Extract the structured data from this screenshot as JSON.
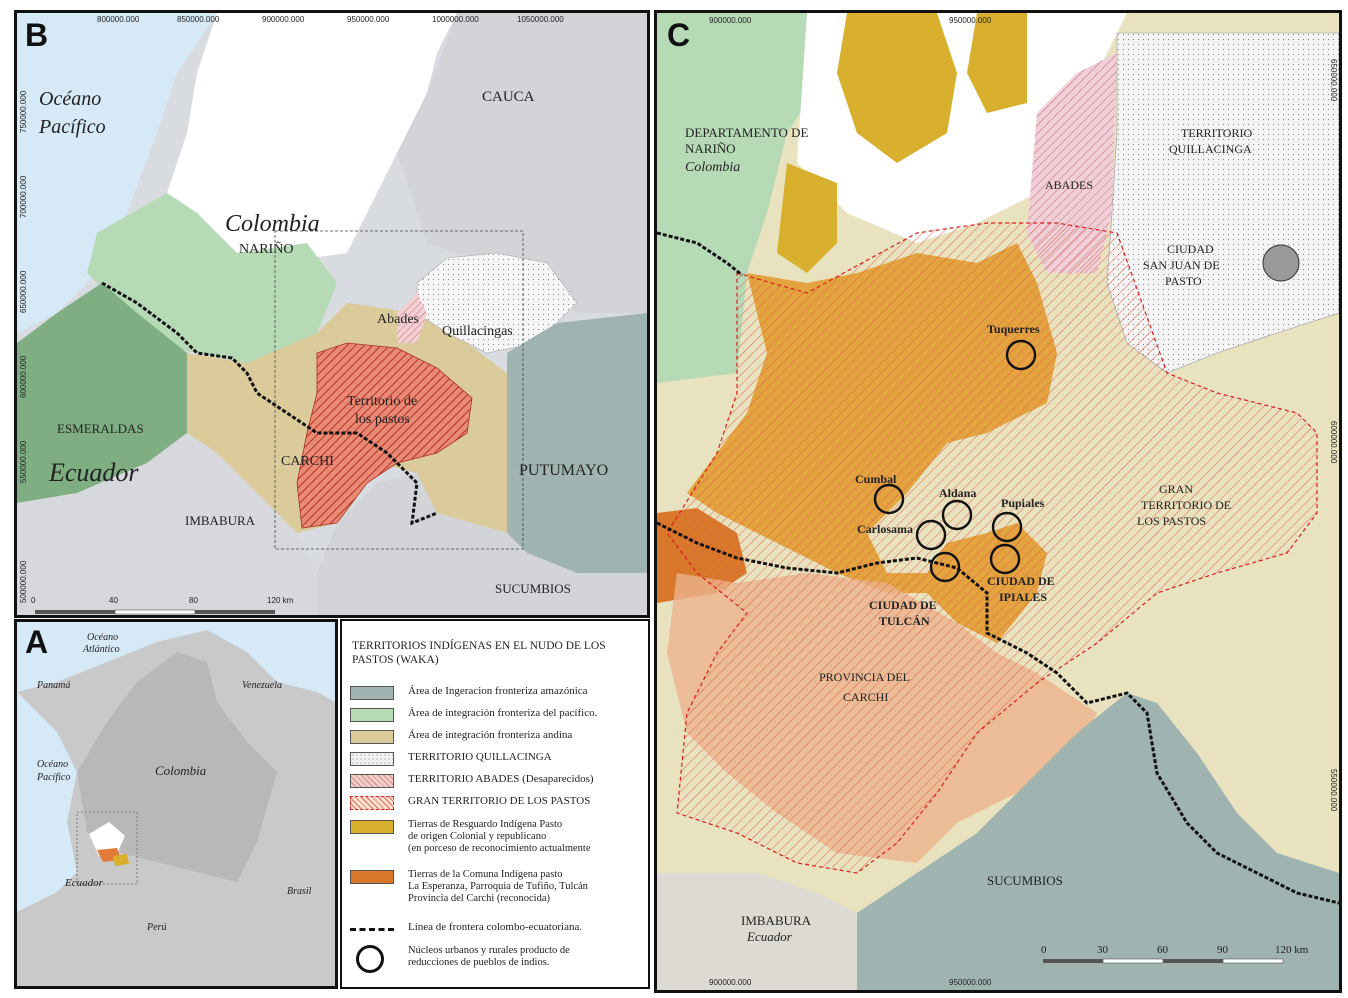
{
  "panel_b": {
    "letter": "B",
    "coords_x": [
      "800000.000",
      "850000.000",
      "900000.000",
      "950000.000",
      "1000000.000",
      "1050000.000"
    ],
    "coords_y": [
      "750000.000",
      "700000.000",
      "650000.000",
      "600000.000",
      "550000.000",
      "500000.000"
    ],
    "ocean": [
      "Océano",
      "Pacífico"
    ],
    "labels": {
      "cauca": "CAUCA",
      "colombia": "Colombia",
      "narino": "NARIÑO",
      "abades": "Abades",
      "quillacingas": "Quillacingas",
      "territorio_pastos": [
        "Territorio de",
        "los pastos"
      ],
      "esmeraldas": "ESMERALDAS",
      "ecuador": "Ecuador",
      "carchi": "CARCHI",
      "putumayo": "PUTUMAYO",
      "imbabura": "IMBABURA",
      "sucumbios": "SUCUMBIOS"
    },
    "scale": [
      "0",
      "40",
      "80",
      "120 km"
    ]
  },
  "panel_a": {
    "letter": "A",
    "labels": {
      "oceano_atlantico": [
        "Océano",
        "Atlántico"
      ],
      "panama": "Panamá",
      "venezuela": "Venezuela",
      "oceano_pacifico": [
        "Océano",
        "Pacífico"
      ],
      "colombia": "Colombia",
      "ecuador": "Ecuador",
      "brasil": "Brasil",
      "peru": "Perú"
    }
  },
  "legend": {
    "title": "TERRITORIOS INDÍGENAS EN EL NUDO DE LOS PASTOS (WAKA)",
    "items": [
      {
        "label": "Área de Ingeracion fronteriza amazónica",
        "color": "#9fb3b0"
      },
      {
        "label": "Área de integración fronteriza del pacífico.",
        "color": "#b6dab6"
      },
      {
        "label": "Área de integración fronteriza andina",
        "color": "#dccb9a"
      },
      {
        "label": "TERRITORIO QUILLACINGA",
        "color": "#f1f1f1"
      },
      {
        "label": "TERRITORIO ABADES (Desaparecidos)",
        "color": "#f2d0c8"
      },
      {
        "label": "GRAN TERRITORIO DE LOS PASTOS",
        "color": "#fbe2d0"
      },
      {
        "label": "Tierras de Resguardo Indígena Pasto\nde origen Colonial y republicano\n(en porceso de reconocimiento actualmente",
        "color": "#d8b02e"
      },
      {
        "label": "Tierras de la Comuna Indígena pasto\nLa Esperanza, Parroquia de Tufiño, Tulcán\nProvincia del Carchi (reconocida)",
        "color": "#d9782a"
      },
      {
        "label": "Línea de frontera colombo-ecuatoriana.",
        "color": "#111111"
      },
      {
        "label": "Núcleos urbanos y rurales producto de\nreducciones de pueblos de indios.",
        "color": "#111111"
      }
    ]
  },
  "panel_c": {
    "letter": "C",
    "coords_x_top": [
      "900000.000",
      "950000.000"
    ],
    "coords_x_bottom": [
      "900000.000",
      "950000.000"
    ],
    "coords_y": [
      "650000.000",
      "600000.000",
      "550000.000"
    ],
    "labels": {
      "departamento": [
        "DEPARTAMENTO DE",
        "NARIÑO"
      ],
      "colombia": "Colombia",
      "abades": "ABADES",
      "territorio_quillacinga": [
        "TERRITORIO",
        "QUILLACINGA"
      ],
      "ciudad_pasto": [
        "CIUDAD",
        "SAN JUAN DE",
        "PASTO"
      ],
      "tuquerres": "Tuquerres",
      "cumbal": "Cumbal",
      "aldana": "Aldana",
      "pupiales": "Pupiales",
      "carlosama": "Carlosama",
      "ciudad_ipiales": [
        "CIUDAD DE",
        "IPIALES"
      ],
      "ciudad_tulcan": [
        "CIUDAD DE",
        "TULCÁN"
      ],
      "gran_territorio": [
        "GRAN",
        "TERRITORIO DE",
        "LOS PASTOS"
      ],
      "provincia_carchi": [
        "PROVINCIA DEL",
        "CARCHI"
      ],
      "sucumbios": "SUCUMBIOS",
      "imbabura": "IMBABURA",
      "ecuador": "Ecuador"
    },
    "scale": [
      "0",
      "30",
      "60",
      "90",
      "120 km"
    ]
  }
}
